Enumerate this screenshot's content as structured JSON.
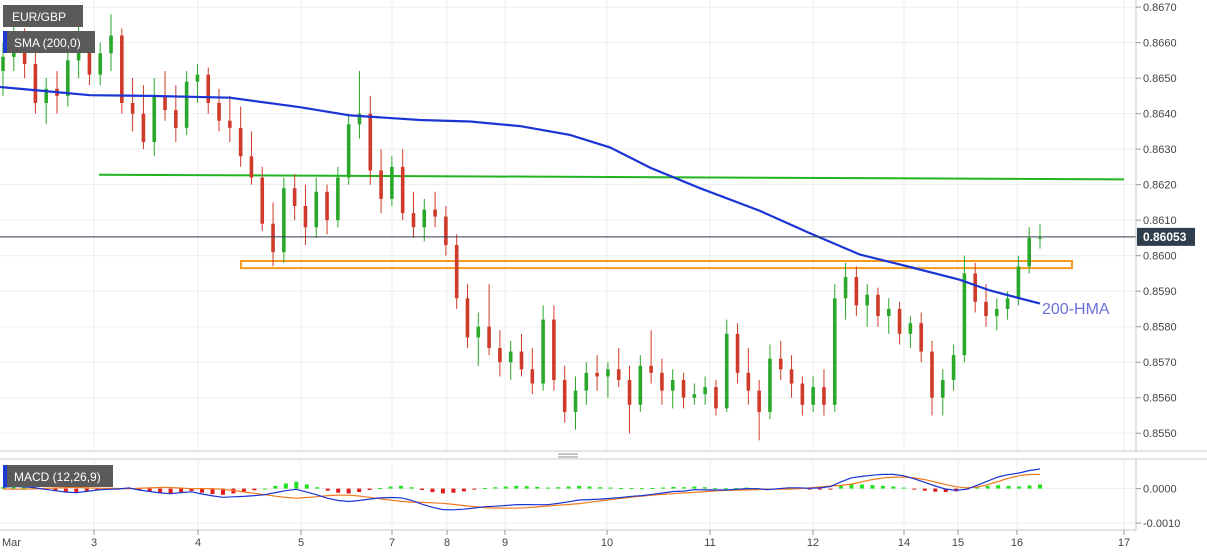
{
  "chart_data": {
    "type": "candlestick",
    "symbol": "EUR/GBP",
    "indicator_label": "SMA (200,0)",
    "macd_label": "MACD (12,26,9)",
    "annotation": "200-HMA",
    "last_price": "0.86053",
    "x_ticks": [
      {
        "label": "Mar",
        "pos": 0
      },
      {
        "label": "3",
        "pos": 94
      },
      {
        "label": "4",
        "pos": 198
      },
      {
        "label": "5",
        "pos": 301
      },
      {
        "label": "7",
        "pos": 392
      },
      {
        "label": "8",
        "pos": 447
      },
      {
        "label": "9",
        "pos": 505
      },
      {
        "label": "10",
        "pos": 607
      },
      {
        "label": "11",
        "pos": 710
      },
      {
        "label": "12",
        "pos": 813
      },
      {
        "label": "14",
        "pos": 904
      },
      {
        "label": "15",
        "pos": 958
      },
      {
        "label": "16",
        "pos": 1017
      },
      {
        "label": "17",
        "pos": 1124
      }
    ],
    "price_axis": {
      "min": 0.8545,
      "max": 0.8672,
      "ticks": [
        "0.8670",
        "0.8660",
        "0.8650",
        "0.8640",
        "0.8630",
        "0.8620",
        "0.8610",
        "0.8600",
        "0.8590",
        "0.8580",
        "0.8570",
        "0.8560",
        "0.8550"
      ]
    },
    "macd_axis": {
      "min": -0.0012,
      "max": 0.0008,
      "ticks": [
        "0.0000",
        "-0.0010"
      ]
    },
    "resistance_line": {
      "y1": 0.86228,
      "y2": 0.86215,
      "x1_pos": 99,
      "x2_pos": 1124
    },
    "support_zone": {
      "top": 0.85985,
      "bottom": 0.85965,
      "x1_pos": 241,
      "x2_pos": 1072
    },
    "sma_200": [
      [
        0,
        0.86475
      ],
      [
        40,
        0.86465
      ],
      [
        90,
        0.86452
      ],
      [
        150,
        0.8645
      ],
      [
        230,
        0.86445
      ],
      [
        300,
        0.86418
      ],
      [
        350,
        0.86395
      ],
      [
        420,
        0.86382
      ],
      [
        470,
        0.86378
      ],
      [
        520,
        0.86365
      ],
      [
        570,
        0.8634
      ],
      [
        610,
        0.86305
      ],
      [
        650,
        0.86248
      ],
      [
        700,
        0.8619
      ],
      [
        760,
        0.86126
      ],
      [
        810,
        0.86063
      ],
      [
        860,
        0.86003
      ],
      [
        910,
        0.85968
      ],
      [
        960,
        0.85932
      ],
      [
        990,
        0.85902
      ],
      [
        1040,
        0.85865
      ]
    ],
    "candles": [
      [
        0.8652,
        0.866,
        0.8645,
        0.8656
      ],
      [
        0.8656,
        0.8666,
        0.8652,
        0.8662
      ],
      [
        0.8662,
        0.8664,
        0.865,
        0.8654
      ],
      [
        0.8654,
        0.8658,
        0.864,
        0.8643
      ],
      [
        0.8643,
        0.865,
        0.8637,
        0.8647
      ],
      [
        0.8647,
        0.8652,
        0.864,
        0.8645
      ],
      [
        0.8645,
        0.8658,
        0.8642,
        0.8655
      ],
      [
        0.8655,
        0.8665,
        0.865,
        0.866
      ],
      [
        0.866,
        0.8662,
        0.8648,
        0.8651
      ],
      [
        0.8651,
        0.866,
        0.8648,
        0.8657
      ],
      [
        0.8657,
        0.8668,
        0.8652,
        0.8662
      ],
      [
        0.8662,
        0.8664,
        0.864,
        0.8643
      ],
      [
        0.8643,
        0.865,
        0.8635,
        0.864
      ],
      [
        0.864,
        0.8648,
        0.863,
        0.8632
      ],
      [
        0.8632,
        0.865,
        0.8628,
        0.8645
      ],
      [
        0.8645,
        0.8652,
        0.8638,
        0.8641
      ],
      [
        0.8641,
        0.8648,
        0.8632,
        0.8636
      ],
      [
        0.8636,
        0.8652,
        0.8634,
        0.8649
      ],
      [
        0.8649,
        0.8654,
        0.8643,
        0.8651
      ],
      [
        0.8651,
        0.8653,
        0.864,
        0.8643
      ],
      [
        0.8643,
        0.8647,
        0.8635,
        0.8638
      ],
      [
        0.8638,
        0.8645,
        0.8632,
        0.8636
      ],
      [
        0.8636,
        0.8642,
        0.8625,
        0.8628
      ],
      [
        0.8628,
        0.8635,
        0.862,
        0.8622
      ],
      [
        0.8622,
        0.8625,
        0.8607,
        0.8609
      ],
      [
        0.8609,
        0.8615,
        0.8597,
        0.8601
      ],
      [
        0.8601,
        0.8622,
        0.8598,
        0.8619
      ],
      [
        0.8619,
        0.8623,
        0.861,
        0.8614
      ],
      [
        0.8614,
        0.862,
        0.8603,
        0.8608
      ],
      [
        0.8608,
        0.8622,
        0.8605,
        0.8618
      ],
      [
        0.8618,
        0.862,
        0.8606,
        0.861
      ],
      [
        0.861,
        0.8625,
        0.8608,
        0.8622
      ],
      [
        0.8622,
        0.864,
        0.862,
        0.8637
      ],
      [
        0.8637,
        0.8652,
        0.8633,
        0.864
      ],
      [
        0.864,
        0.8645,
        0.862,
        0.8624
      ],
      [
        0.8624,
        0.863,
        0.8612,
        0.8616
      ],
      [
        0.8616,
        0.8628,
        0.8614,
        0.8625
      ],
      [
        0.8625,
        0.863,
        0.861,
        0.8612
      ],
      [
        0.8612,
        0.8618,
        0.8605,
        0.8608
      ],
      [
        0.8608,
        0.8616,
        0.8604,
        0.8613
      ],
      [
        0.8613,
        0.8618,
        0.8608,
        0.8611
      ],
      [
        0.8611,
        0.8614,
        0.86,
        0.8603
      ],
      [
        0.8603,
        0.8606,
        0.8585,
        0.8588
      ],
      [
        0.8588,
        0.8592,
        0.8574,
        0.8577
      ],
      [
        0.8577,
        0.8584,
        0.8569,
        0.858
      ],
      [
        0.858,
        0.8592,
        0.8572,
        0.8574
      ],
      [
        0.8574,
        0.8579,
        0.8566,
        0.857
      ],
      [
        0.857,
        0.8576,
        0.8565,
        0.8573
      ],
      [
        0.8573,
        0.8578,
        0.8566,
        0.8568
      ],
      [
        0.8568,
        0.8574,
        0.8561,
        0.8564
      ],
      [
        0.8564,
        0.8586,
        0.8562,
        0.8582
      ],
      [
        0.8582,
        0.8586,
        0.8562,
        0.8565
      ],
      [
        0.8565,
        0.8569,
        0.8553,
        0.8556
      ],
      [
        0.8556,
        0.8566,
        0.8551,
        0.8562
      ],
      [
        0.8562,
        0.857,
        0.8558,
        0.8567
      ],
      [
        0.8567,
        0.8572,
        0.8562,
        0.8566
      ],
      [
        0.8566,
        0.857,
        0.856,
        0.8568
      ],
      [
        0.8568,
        0.8574,
        0.8563,
        0.8565
      ],
      [
        0.8565,
        0.8569,
        0.855,
        0.8558
      ],
      [
        0.8558,
        0.8572,
        0.8556,
        0.8569
      ],
      [
        0.8569,
        0.8579,
        0.8564,
        0.8567
      ],
      [
        0.8567,
        0.8571,
        0.8558,
        0.8562
      ],
      [
        0.8562,
        0.8568,
        0.8557,
        0.8565
      ],
      [
        0.8565,
        0.8567,
        0.8557,
        0.856
      ],
      [
        0.856,
        0.8564,
        0.8558,
        0.8561
      ],
      [
        0.8561,
        0.8566,
        0.8558,
        0.8563
      ],
      [
        0.8563,
        0.8565,
        0.8555,
        0.8557
      ],
      [
        0.8557,
        0.8582,
        0.8556,
        0.8578
      ],
      [
        0.8578,
        0.8581,
        0.8564,
        0.8567
      ],
      [
        0.8567,
        0.8574,
        0.8558,
        0.8562
      ],
      [
        0.8562,
        0.8565,
        0.8548,
        0.8556
      ],
      [
        0.8556,
        0.8575,
        0.8554,
        0.8571
      ],
      [
        0.8571,
        0.8576,
        0.8565,
        0.8568
      ],
      [
        0.8568,
        0.8572,
        0.856,
        0.8564
      ],
      [
        0.8564,
        0.8566,
        0.8555,
        0.8558
      ],
      [
        0.8558,
        0.8566,
        0.8556,
        0.8563
      ],
      [
        0.8563,
        0.8568,
        0.8555,
        0.8558
      ],
      [
        0.8558,
        0.8592,
        0.8556,
        0.8588
      ],
      [
        0.8588,
        0.8598,
        0.8582,
        0.8594
      ],
      [
        0.8594,
        0.8597,
        0.8583,
        0.8586
      ],
      [
        0.8586,
        0.8592,
        0.858,
        0.8589
      ],
      [
        0.8589,
        0.8591,
        0.858,
        0.8583
      ],
      [
        0.8583,
        0.8588,
        0.8578,
        0.8585
      ],
      [
        0.8585,
        0.8587,
        0.8575,
        0.8578
      ],
      [
        0.8578,
        0.8583,
        0.8574,
        0.8581
      ],
      [
        0.8581,
        0.8584,
        0.857,
        0.8573
      ],
      [
        0.8573,
        0.8576,
        0.8555,
        0.856
      ],
      [
        0.856,
        0.8568,
        0.8555,
        0.8565
      ],
      [
        0.8565,
        0.8575,
        0.8562,
        0.8572
      ],
      [
        0.8572,
        0.86,
        0.857,
        0.8595
      ],
      [
        0.8595,
        0.8598,
        0.8584,
        0.8587
      ],
      [
        0.8587,
        0.8592,
        0.858,
        0.8583
      ],
      [
        0.8583,
        0.8588,
        0.8579,
        0.8585
      ],
      [
        0.8585,
        0.859,
        0.8582,
        0.8588
      ],
      [
        0.8588,
        0.86,
        0.8586,
        0.8597
      ],
      [
        0.8597,
        0.8608,
        0.8595,
        0.8605
      ],
      [
        0.8605,
        0.8609,
        0.8602,
        0.8605
      ]
    ],
    "macd_hist": [
      4e-05,
      6e-05,
      5e-05,
      3e-05,
      -2e-05,
      -6e-05,
      -0.0001,
      -0.00012,
      -8e-05,
      -4e-05,
      -2e-05,
      -1e-05,
      2e-05,
      -4e-05,
      -8e-05,
      -0.00012,
      -0.00014,
      -0.0001,
      -7e-05,
      -0.00012,
      -0.00016,
      -0.00018,
      -0.00014,
      -0.0001,
      -5e-05,
      0.0,
      8e-05,
      0.00015,
      0.0002,
      0.00012,
      4e-05,
      -6e-05,
      -0.00012,
      -0.00014,
      -0.0001,
      -4e-05,
      2e-05,
      6e-05,
      8e-05,
      4e-05,
      -4e-05,
      -0.0001,
      -0.00014,
      -0.00012,
      -8e-05,
      -3e-05,
      2e-05,
      4e-05,
      6e-05,
      8e-05,
      7e-05,
      5e-05,
      3e-05,
      4e-05,
      6e-05,
      8e-05,
      6e-05,
      4e-05,
      3e-05,
      2e-05,
      2e-05,
      1e-05,
      2e-05,
      3e-05,
      5e-05,
      4e-05,
      6e-05,
      4e-05,
      2e-05,
      1e-05,
      2e-05,
      3e-05,
      2e-05,
      -1e-05,
      1e-05,
      3e-05,
      2e-05,
      -1e-05,
      -2e-05,
      -1e-05,
      8e-05,
      0.00014,
      0.00012,
      0.0001,
      8e-05,
      6e-05,
      3e-05,
      -2e-05,
      -6e-05,
      -9e-05,
      -0.0001,
      -8e-05,
      -3e-05,
      4e-05,
      8e-05,
      0.0001,
      8e-05,
      6e-05,
      9e-05,
      0.00012
    ]
  }
}
